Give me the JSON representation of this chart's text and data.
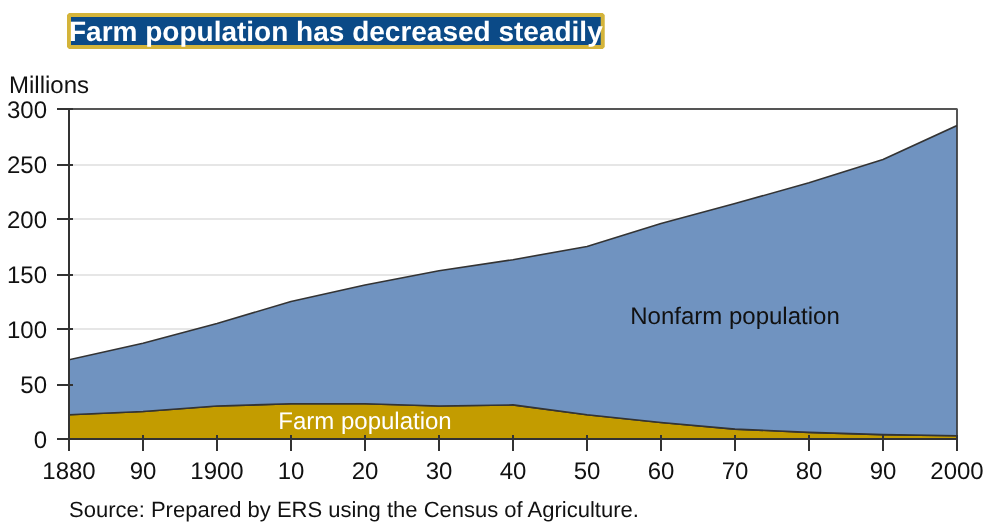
{
  "chart_data": {
    "type": "area",
    "stacked": true,
    "title": "Farm population has decreased steadily",
    "ylabel": "Millions",
    "x": [
      1880,
      1890,
      1900,
      1910,
      1920,
      1930,
      1940,
      1950,
      1960,
      1970,
      1980,
      1990,
      2000
    ],
    "series": [
      {
        "name": "Farm population",
        "color": "#c39c00",
        "values": [
          22,
          25,
          30,
          32,
          32,
          30,
          31,
          22,
          15,
          9,
          6,
          4,
          3
        ]
      },
      {
        "name": "Nonfarm population",
        "color": "#7093c0",
        "values": [
          50,
          62,
          75,
          93,
          108,
          123,
          132,
          153,
          181,
          205,
          227,
          250,
          282
        ]
      }
    ],
    "xlim": [
      1880,
      2000
    ],
    "xticks": [
      1880,
      {
        "value": 1890,
        "label": "90"
      },
      1900,
      {
        "value": 1910,
        "label": "10"
      },
      {
        "value": 1920,
        "label": "20"
      },
      {
        "value": 1930,
        "label": "30"
      },
      {
        "value": 1940,
        "label": "40"
      },
      {
        "value": 1950,
        "label": "50"
      },
      {
        "value": 1960,
        "label": "60"
      },
      {
        "value": 1970,
        "label": "70"
      },
      {
        "value": 1980,
        "label": "80"
      },
      {
        "value": 1990,
        "label": "90"
      },
      2000
    ],
    "ylim": [
      0,
      300
    ],
    "yticks": [
      0,
      50,
      100,
      150,
      200,
      250,
      300
    ],
    "grid": "y",
    "annotations": [
      "Source:  Prepared by ERS using the Census of Agriculture."
    ]
  }
}
